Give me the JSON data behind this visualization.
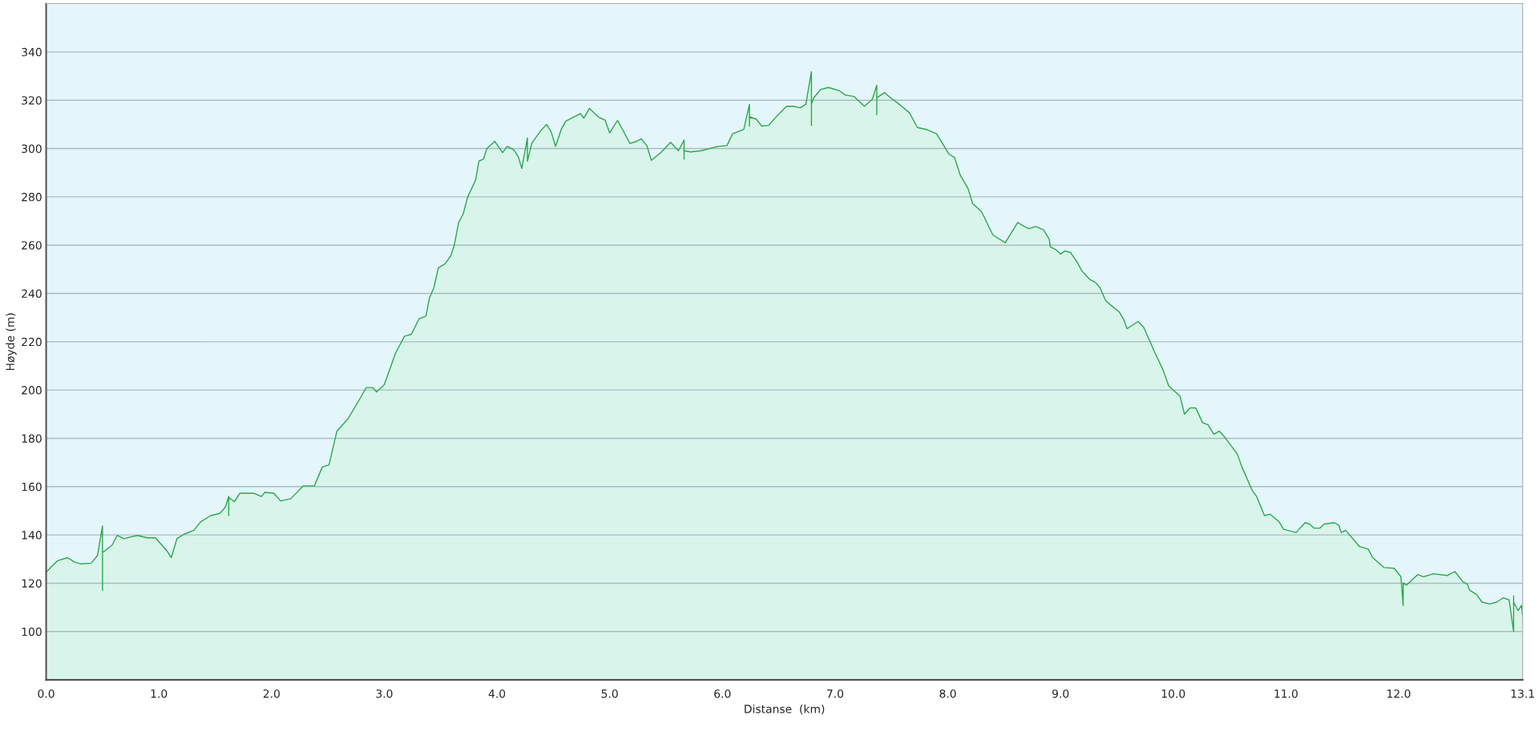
{
  "chart_data": {
    "type": "area",
    "xlabel": "Distanse  (km)",
    "ylabel": "Høyde (m)",
    "xlim": [
      0,
      13.1
    ],
    "ylim": [
      80,
      360
    ],
    "xticks": [
      {
        "value": 0,
        "label": "0.0"
      },
      {
        "value": 1,
        "label": "1.0"
      },
      {
        "value": 2,
        "label": "2.0"
      },
      {
        "value": 3,
        "label": "3.0"
      },
      {
        "value": 4,
        "label": "4.0"
      },
      {
        "value": 5,
        "label": "5.0"
      },
      {
        "value": 6,
        "label": "6.0"
      },
      {
        "value": 7,
        "label": "7.0"
      },
      {
        "value": 8,
        "label": "8.0"
      },
      {
        "value": 9,
        "label": "9.0"
      },
      {
        "value": 10,
        "label": "10.0"
      },
      {
        "value": 11,
        "label": "11.0"
      },
      {
        "value": 12,
        "label": "12.0"
      },
      13.1
    ],
    "yticks": [
      100,
      120,
      140,
      160,
      180,
      200,
      220,
      240,
      260,
      280,
      300,
      320,
      340
    ],
    "grid": "y",
    "legend": false,
    "line_style": "solid",
    "marker": "none",
    "series": [
      {
        "color": "#2aa84a",
        "x": [
          0,
          0.04,
          0.1,
          0.19,
          0.25,
          0.31,
          0.4,
          0.455,
          0.5,
          0.5,
          0.5,
          0.51,
          0.586,
          0.63,
          0.69,
          0.735,
          0.81,
          0.9,
          0.97,
          1.07,
          1.11,
          1.16,
          1.22,
          1.31,
          1.37,
          1.46,
          1.54,
          1.59,
          1.62,
          1.62,
          1.62,
          1.67,
          1.72,
          1.84,
          1.91,
          1.94,
          2.02,
          2.08,
          2.17,
          2.28,
          2.38,
          2.45,
          2.51,
          2.58,
          2.68,
          2.79,
          2.84,
          2.9,
          2.93,
          3.0,
          3.1,
          3.18,
          3.24,
          3.31,
          3.37,
          3.4,
          3.44,
          3.48,
          3.54,
          3.59,
          3.62,
          3.66,
          3.7,
          3.74,
          3.81,
          3.84,
          3.88,
          3.91,
          3.98,
          4.05,
          4.09,
          4.15,
          4.19,
          4.22,
          4.27,
          4.27,
          4.31,
          4.39,
          4.44,
          4.48,
          4.52,
          4.57,
          4.61,
          4.74,
          4.77,
          4.82,
          4.9,
          4.96,
          5.0,
          5.07,
          5.18,
          5.24,
          5.28,
          5.33,
          5.37,
          5.46,
          5.54,
          5.61,
          5.66,
          5.66,
          5.66,
          5.72,
          5.81,
          5.96,
          6.04,
          6.09,
          6.19,
          6.24,
          6.24,
          6.24,
          6.3,
          6.35,
          6.41,
          6.51,
          6.57,
          6.63,
          6.69,
          6.74,
          6.79,
          6.79,
          6.79,
          6.81,
          6.87,
          6.94,
          7.04,
          7.09,
          7.17,
          7.26,
          7.33,
          7.37,
          7.37,
          7.37,
          7.44,
          7.48,
          7.57,
          7.66,
          7.73,
          7.81,
          7.9,
          8.01,
          8.06,
          8.11,
          8.18,
          8.22,
          8.3,
          8.4,
          8.51,
          8.62,
          8.67,
          8.72,
          8.78,
          8.85,
          8.9,
          8.91,
          8.96,
          9.0,
          9.04,
          9.09,
          9.15,
          9.19,
          9.26,
          9.31,
          9.35,
          9.4,
          9.44,
          9.52,
          9.56,
          9.59,
          9.69,
          9.74,
          9.83,
          9.91,
          9.96,
          10.06,
          10.1,
          10.15,
          10.2,
          10.26,
          10.31,
          10.36,
          10.41,
          10.46,
          10.57,
          10.61,
          10.7,
          10.74,
          10.81,
          10.86,
          10.94,
          10.98,
          11.09,
          11.17,
          11.21,
          11.25,
          11.3,
          11.34,
          11.43,
          11.47,
          11.49,
          11.53,
          11.65,
          11.73,
          11.77,
          11.87,
          11.96,
          12.02,
          12.04,
          12.04,
          12.07,
          12.17,
          12.22,
          12.31,
          12.43,
          12.5,
          12.57,
          12.61,
          12.63,
          12.69,
          12.74,
          12.81,
          12.87,
          12.93,
          12.98,
          13.02,
          13.02,
          13.02,
          13.06,
          13.09,
          13.1
        ],
        "values": [
          124.5,
          126.5,
          129.3,
          130.6,
          128.8,
          128,
          128.3,
          131.4,
          143.7,
          117,
          132.8,
          133,
          135.8,
          139.8,
          138.4,
          139,
          139.8,
          138.8,
          138.8,
          133.5,
          130.6,
          138.4,
          140.2,
          141.9,
          145.4,
          148,
          148.9,
          151.5,
          156,
          148,
          155.5,
          153.8,
          157.3,
          157.3,
          155.9,
          157.6,
          157.3,
          154.1,
          155,
          160.3,
          160.3,
          168.1,
          169,
          183,
          188.2,
          196.9,
          201,
          201,
          199.2,
          202.2,
          215.3,
          222.3,
          223.1,
          229.6,
          230.6,
          238,
          242.4,
          250.6,
          252.3,
          255.5,
          259.8,
          269.4,
          272.9,
          279.9,
          286.9,
          294.8,
          295.6,
          300,
          303,
          298.3,
          300.9,
          299.5,
          296.5,
          291.8,
          304.4,
          294.8,
          302.3,
          307.5,
          310,
          307,
          300.9,
          307.9,
          311.3,
          314.5,
          312.6,
          316.6,
          313.1,
          311.7,
          306.5,
          311.7,
          302.1,
          303,
          304,
          301.2,
          295.1,
          298.6,
          302.6,
          299.1,
          303.5,
          295.6,
          299.1,
          298.6,
          299.1,
          300.9,
          301.2,
          306.1,
          307.9,
          318.3,
          309.3,
          313.1,
          312.2,
          309.3,
          309.6,
          314.8,
          317.5,
          317.5,
          316.9,
          318.3,
          331.8,
          309.6,
          318.3,
          321,
          324.4,
          325.3,
          323.9,
          322.2,
          321.5,
          317.5,
          320.4,
          326.2,
          314,
          321,
          323.2,
          321.5,
          318.3,
          314.8,
          308.7,
          307.9,
          306.1,
          297.7,
          296.3,
          289,
          283.4,
          277.3,
          273.8,
          264.2,
          261,
          269.4,
          268,
          266.8,
          267.7,
          266.3,
          262.4,
          259.3,
          258.1,
          256.3,
          257.6,
          256.9,
          252.8,
          249.3,
          245.8,
          244.6,
          242.4,
          237.1,
          235.4,
          232.4,
          229.3,
          225.4,
          228.4,
          225.8,
          216.2,
          208.3,
          201.7,
          197.5,
          190,
          192.6,
          192.6,
          186.5,
          185.6,
          181.7,
          183,
          180.3,
          173.4,
          168.1,
          158.5,
          155.9,
          148,
          148.6,
          145.4,
          142.3,
          141,
          145.1,
          144.5,
          142.8,
          142.8,
          144.5,
          145.1,
          144,
          141,
          141.9,
          135.3,
          134.1,
          130.6,
          126.5,
          126.2,
          122.7,
          110.8,
          120.1,
          119.2,
          123.6,
          122.7,
          123.9,
          123.2,
          124.8,
          120.6,
          119.6,
          117.1,
          115.4,
          112.2,
          111.4,
          112.2,
          114,
          113.1,
          100,
          114.8,
          112.2,
          108.7,
          110.8,
          106.1
        ]
      }
    ]
  }
}
